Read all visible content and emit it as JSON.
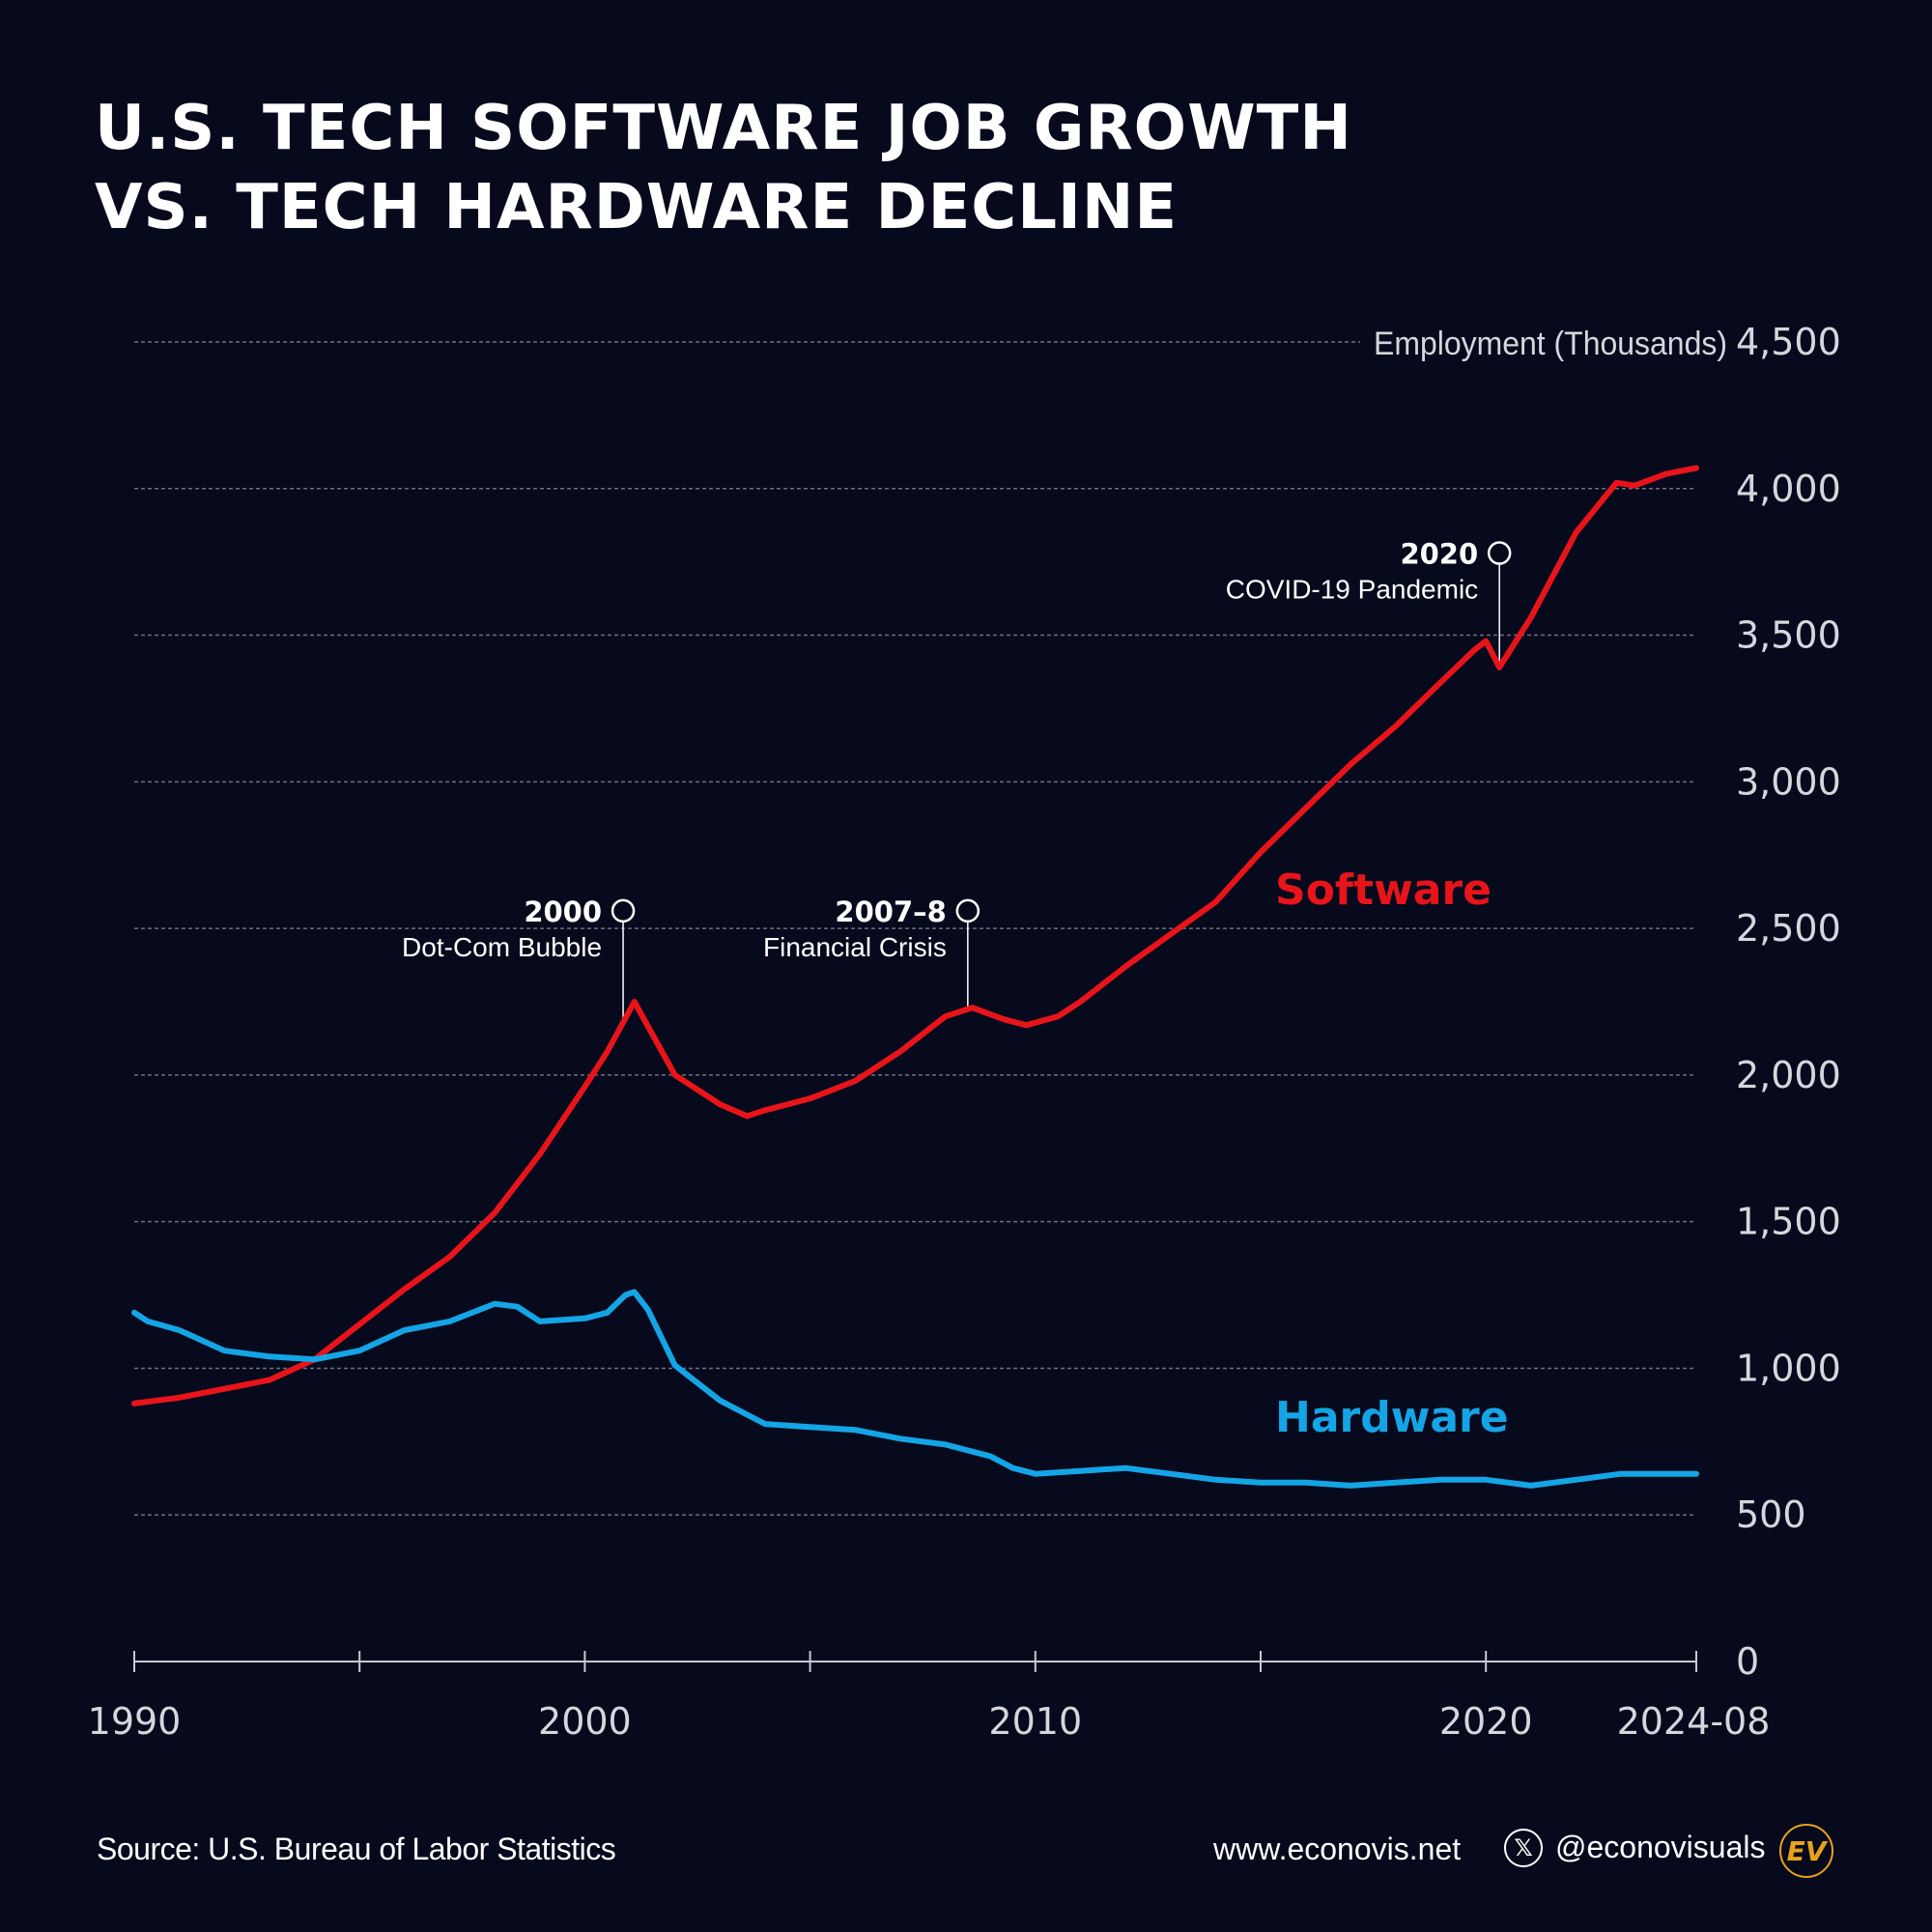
{
  "title_lines": [
    "U.S. TECH SOFTWARE JOB GROWTH",
    "VS. TECH HARDWARE DECLINE"
  ],
  "footer": {
    "source": "Source: U.S. Bureau of Labor Statistics",
    "website": "www.econovis.net",
    "social_icon": "x-logo-icon",
    "social_icon_glyph": "𝕏",
    "handle": "@econovisuals",
    "logo_text": "EV"
  },
  "colors": {
    "background": "#060a1c",
    "software": "#e8141a",
    "hardware": "#14a5e6",
    "grid": "#6b6f80",
    "axis_text": "#d6d7dc",
    "logo": "#e8a21a"
  },
  "chart_data": {
    "type": "line",
    "ylabel": "Employment (Thousands)",
    "ylim": [
      0,
      4500
    ],
    "yticks": [
      0,
      500,
      1000,
      1500,
      2000,
      2500,
      3000,
      3500,
      4000,
      4500
    ],
    "ytick_labels": [
      "0",
      "500",
      "1,000",
      "1,500",
      "2,000",
      "2,500",
      "3,000",
      "3,500",
      "4,000",
      "4,500"
    ],
    "xlim": [
      1990,
      2024.67
    ],
    "xticks_major": [
      1990,
      2000,
      2010,
      2020,
      2024.67
    ],
    "xtick_labels": [
      "1990",
      "2000",
      "2010",
      "2020",
      "2024-08"
    ],
    "xticks_minor": [
      1995,
      2005,
      2015
    ],
    "grid": true,
    "series": [
      {
        "name": "Software",
        "label": "Software",
        "x": [
          1990,
          1991,
          1992,
          1993,
          1994,
          1995,
          1996,
          1997,
          1998,
          1999,
          2000,
          2000.5,
          2001.1,
          2002,
          2003,
          2003.6,
          2004,
          2005,
          2006,
          2007,
          2008,
          2008.6,
          2009.3,
          2009.8,
          2010.5,
          2011,
          2012,
          2013,
          2014,
          2015,
          2016,
          2017,
          2018,
          2019,
          2019.75,
          2020.0,
          2020.3,
          2021,
          2022,
          2022.9,
          2023.3,
          2024,
          2024.67
        ],
        "values": [
          880,
          900,
          930,
          960,
          1030,
          1150,
          1270,
          1380,
          1530,
          1730,
          1960,
          2080,
          2250,
          2000,
          1900,
          1860,
          1880,
          1920,
          1980,
          2080,
          2200,
          2230,
          2190,
          2170,
          2200,
          2250,
          2370,
          2480,
          2590,
          2760,
          2910,
          3060,
          3190,
          3340,
          3450,
          3480,
          3390,
          3560,
          3850,
          4020,
          4010,
          4050,
          4070
        ]
      },
      {
        "name": "Hardware",
        "label": "Hardware",
        "x": [
          1990,
          1990.3,
          1991,
          1992,
          1993,
          1994,
          1995,
          1996,
          1997,
          1998,
          1998.5,
          1999,
          2000,
          2000.5,
          2000.9,
          2001.1,
          2001.4,
          2002,
          2003,
          2004,
          2005,
          2006,
          2007,
          2008,
          2009,
          2009.5,
          2010,
          2011,
          2012,
          2013,
          2014,
          2015,
          2016,
          2017,
          2018,
          2019,
          2020,
          2021,
          2022,
          2023,
          2024,
          2024.67
        ],
        "values": [
          1190,
          1160,
          1130,
          1060,
          1040,
          1030,
          1060,
          1130,
          1160,
          1220,
          1210,
          1160,
          1170,
          1190,
          1250,
          1260,
          1200,
          1010,
          890,
          810,
          800,
          790,
          760,
          740,
          700,
          660,
          640,
          650,
          660,
          640,
          620,
          610,
          610,
          600,
          610,
          620,
          620,
          600,
          620,
          640,
          640,
          640
        ]
      }
    ],
    "annotations": [
      {
        "year_label": "2000",
        "text": "Dot-Com Bubble",
        "x": 2000.85,
        "value": 2190,
        "label_value": 2560
      },
      {
        "year_label": "2007–8",
        "text": "Financial Crisis",
        "x": 2008.5,
        "value": 2230,
        "label_value": 2560
      },
      {
        "year_label": "2020",
        "text": "COVID-19 Pandemic",
        "x": 2020.3,
        "value": 3400,
        "label_value": 3780
      }
    ]
  }
}
